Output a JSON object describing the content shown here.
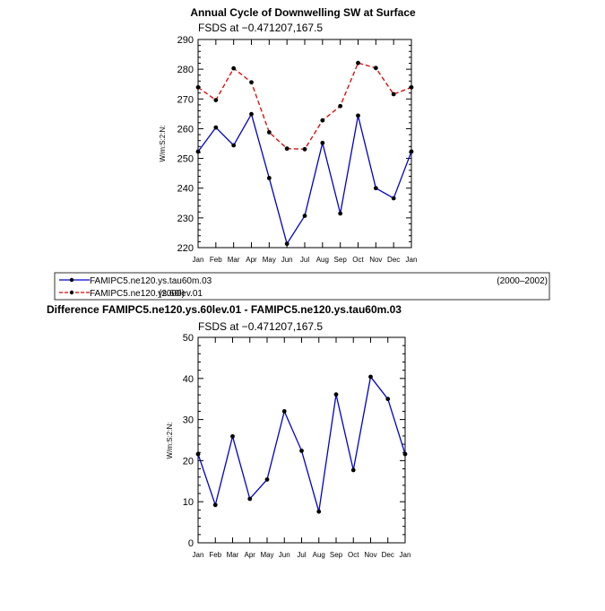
{
  "chart_data": [
    {
      "type": "line",
      "title": "Annual Cycle of Downwelling SW at Surface",
      "subtitle": "FSDS at −0.471207,167.5",
      "ylabel": "W/m:S:2:N:",
      "xlabel": "",
      "categories": [
        "Jan",
        "Feb",
        "Mar",
        "Apr",
        "May",
        "Jun",
        "Jul",
        "Aug",
        "Sep",
        "Oct",
        "Nov",
        "Dec",
        "Jan"
      ],
      "ylim": [
        220,
        290
      ],
      "yticks": [
        220,
        230,
        240,
        250,
        260,
        270,
        280,
        290
      ],
      "series": [
        {
          "name": "FAMIPC5.ne120.ys.tau60m.03",
          "color": "#0000cc",
          "dash": "solid",
          "values": [
            252.3,
            260.4,
            254.4,
            264.9,
            243.4,
            221.3,
            230.7,
            255.2,
            231.5,
            264.4,
            240.0,
            236.6,
            252.3
          ]
        },
        {
          "name": "FAMIPC5.ne120.ys.60lev.01",
          "color": "#dd0000",
          "dash": "dashed",
          "values": [
            273.9,
            269.6,
            280.3,
            275.6,
            258.8,
            253.3,
            253.1,
            262.8,
            267.6,
            282.1,
            280.4,
            271.6,
            273.9
          ]
        }
      ],
      "legend": {
        "placement": "bottom",
        "entries": [
          {
            "label": "FAMIPC5.ne120.ys.tau60m.03",
            "period": "(2000–2002)"
          },
          {
            "label": "FAMIPC5.ne120.ys.60lev.01",
            "period": "(2000)"
          }
        ]
      }
    },
    {
      "type": "line",
      "title": "Difference FAMIPC5.ne120.ys.60lev.01 - FAMIPC5.ne120.ys.tau60m.03",
      "subtitle": "FSDS at −0.471207,167.5",
      "ylabel": "W/m:S:2:N:",
      "xlabel": "",
      "categories": [
        "Jan",
        "Feb",
        "Mar",
        "Apr",
        "May",
        "Jun",
        "Jul",
        "Aug",
        "Sep",
        "Oct",
        "Nov",
        "Dec",
        "Jan"
      ],
      "ylim": [
        0,
        50
      ],
      "yticks": [
        0,
        10,
        20,
        30,
        40,
        50
      ],
      "series": [
        {
          "color": "#0000cc",
          "dash": "solid",
          "values": [
            21.6,
            9.2,
            25.9,
            10.7,
            15.4,
            32.0,
            22.4,
            7.6,
            36.1,
            17.7,
            40.4,
            35.0,
            21.6
          ]
        }
      ]
    }
  ]
}
